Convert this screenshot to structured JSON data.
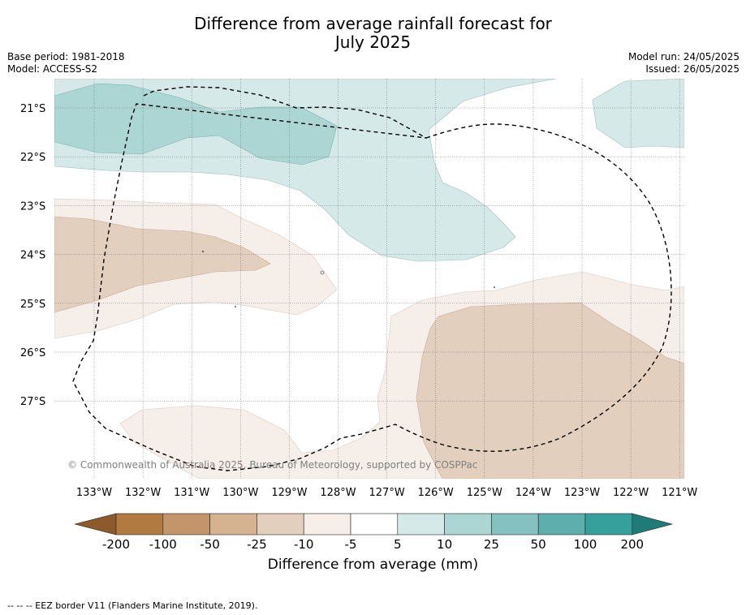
{
  "title_line1": "Difference from average rainfall forecast for",
  "title_line2": "July 2025",
  "meta_left": [
    "Base period: 1981-2018",
    "Model: ACCESS-S2"
  ],
  "meta_right": [
    "Model run: 24/05/2025",
    "Issued: 26/05/2025"
  ],
  "copyright": "© Commonwealth of Australia 2025, Bureau of Meteorology, supported by COSPPac",
  "lat_labels": [
    "21°S",
    "22°S",
    "23°S",
    "24°S",
    "25°S",
    "26°S",
    "27°S"
  ],
  "lon_labels": [
    "133°W",
    "132°W",
    "131°W",
    "130°W",
    "129°W",
    "128°W",
    "127°W",
    "126°W",
    "125°W",
    "124°W",
    "123°W",
    "122°W",
    "121°W"
  ],
  "colorbar": {
    "label": "Difference from average (mm)",
    "ticks": [
      "-200",
      "-100",
      "-50",
      "-25",
      "-10",
      "-5",
      "5",
      "10",
      "25",
      "50",
      "100",
      "200"
    ],
    "colors": [
      "#8c5a2b",
      "#b07a40",
      "#c4956a",
      "#d5b290",
      "#e3cfbd",
      "#f5eee9",
      "#ffffff",
      "#d5eae8",
      "#acd6d4",
      "#85c1c0",
      "#5daeac",
      "#36a19c",
      "#1f7b76"
    ]
  },
  "legend_note": "--  --  -- EEZ border V11 (Flanders Marine Institute, 2019)."
}
